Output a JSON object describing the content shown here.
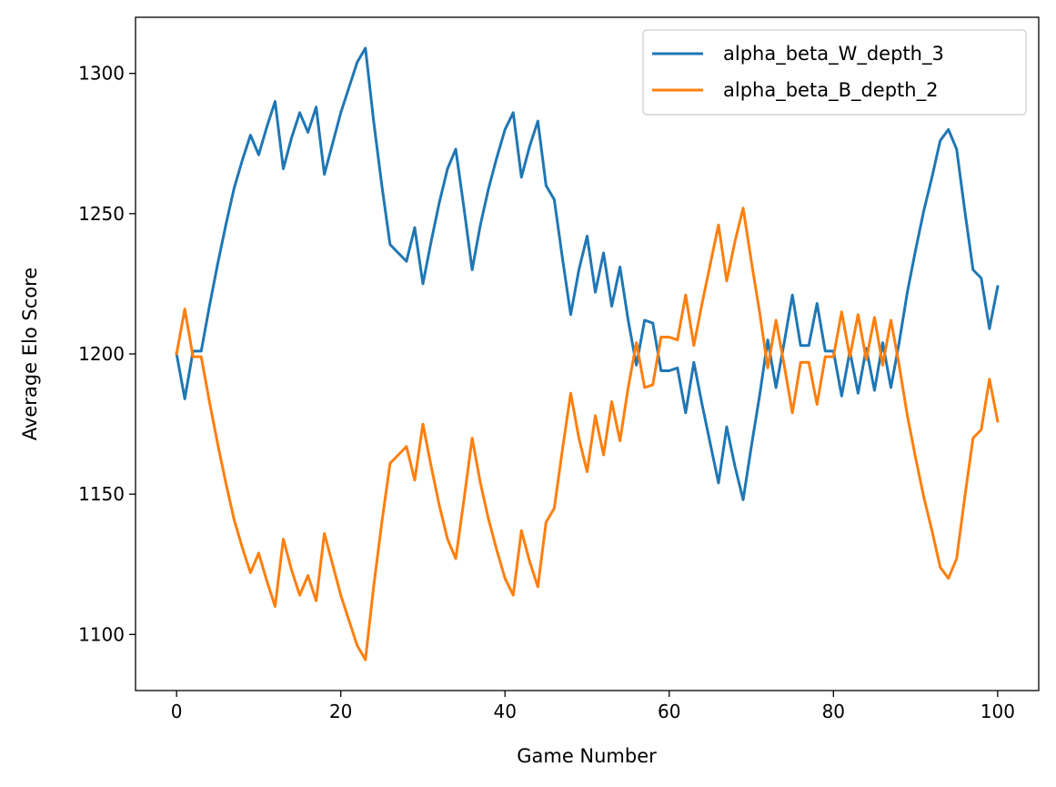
{
  "chart_data": {
    "type": "line",
    "title": "",
    "xlabel": "Game Number",
    "ylabel": "Average Elo Score",
    "xlim": [
      -5,
      105
    ],
    "ylim": [
      1080,
      1320
    ],
    "xticks": [
      0,
      20,
      40,
      60,
      80,
      100
    ],
    "yticks": [
      1100,
      1150,
      1200,
      1250,
      1300
    ],
    "xtick_labels": [
      "0",
      "20",
      "40",
      "60",
      "80",
      "100"
    ],
    "ytick_labels": [
      "1100",
      "1150",
      "1200",
      "1250",
      "1300"
    ],
    "grid": false,
    "legend_position": "top-right",
    "x": [
      0,
      1,
      2,
      3,
      4,
      5,
      6,
      7,
      8,
      9,
      10,
      11,
      12,
      13,
      14,
      15,
      16,
      17,
      18,
      19,
      20,
      21,
      22,
      23,
      24,
      25,
      26,
      27,
      28,
      29,
      30,
      31,
      32,
      33,
      34,
      35,
      36,
      37,
      38,
      39,
      40,
      41,
      42,
      43,
      44,
      45,
      46,
      47,
      48,
      49,
      50,
      51,
      52,
      53,
      54,
      55,
      56,
      57,
      58,
      59,
      60,
      61,
      62,
      63,
      64,
      65,
      66,
      67,
      68,
      69,
      70,
      71,
      72,
      73,
      74,
      75,
      76,
      77,
      78,
      79,
      80,
      81,
      82,
      83,
      84,
      85,
      86,
      87,
      88,
      89,
      90,
      91,
      92,
      93,
      94,
      95,
      96,
      97,
      98,
      99,
      100
    ],
    "series": [
      {
        "name": "alpha_beta_W_depth_3",
        "color": "#1f77b4",
        "values": [
          1200,
          1184,
          1201,
          1201,
          1217,
          1232,
          1246,
          1259,
          1269,
          1278,
          1271,
          1281,
          1290,
          1266,
          1277,
          1286,
          1279,
          1288,
          1264,
          1275,
          1286,
          1295,
          1304,
          1309,
          1283,
          1260,
          1239,
          1236,
          1233,
          1245,
          1225,
          1240,
          1254,
          1266,
          1273,
          1252,
          1230,
          1246,
          1259,
          1270,
          1280,
          1286,
          1263,
          1274,
          1283,
          1260,
          1255,
          1234,
          1214,
          1230,
          1242,
          1222,
          1236,
          1217,
          1231,
          1212,
          1196,
          1212,
          1211,
          1194,
          1194,
          1195,
          1179,
          1197,
          1182,
          1168,
          1154,
          1174,
          1160,
          1148,
          1167,
          1185,
          1205,
          1188,
          1204,
          1221,
          1203,
          1203,
          1218,
          1201,
          1201,
          1185,
          1201,
          1186,
          1202,
          1187,
          1204,
          1188,
          1204,
          1222,
          1237,
          1251,
          1263,
          1276,
          1280,
          1273,
          1251,
          1230,
          1227,
          1209,
          1224
        ]
      },
      {
        "name": "alpha_beta_B_depth_2",
        "color": "#ff7f0e",
        "values": [
          1200,
          1216,
          1199,
          1199,
          1183,
          1168,
          1154,
          1141,
          1131,
          1122,
          1129,
          1119,
          1110,
          1134,
          1123,
          1114,
          1121,
          1112,
          1136,
          1125,
          1114,
          1105,
          1096,
          1091,
          1117,
          1140,
          1161,
          1164,
          1167,
          1155,
          1175,
          1160,
          1146,
          1134,
          1127,
          1148,
          1170,
          1154,
          1141,
          1130,
          1120,
          1114,
          1137,
          1126,
          1117,
          1140,
          1145,
          1166,
          1186,
          1170,
          1158,
          1178,
          1164,
          1183,
          1169,
          1188,
          1204,
          1188,
          1189,
          1206,
          1206,
          1205,
          1221,
          1203,
          1218,
          1232,
          1246,
          1226,
          1240,
          1252,
          1233,
          1215,
          1195,
          1212,
          1196,
          1179,
          1197,
          1197,
          1182,
          1199,
          1199,
          1215,
          1199,
          1214,
          1198,
          1213,
          1196,
          1212,
          1196,
          1178,
          1163,
          1149,
          1137,
          1124,
          1120,
          1127,
          1149,
          1170,
          1173,
          1191,
          1176
        ]
      }
    ]
  }
}
